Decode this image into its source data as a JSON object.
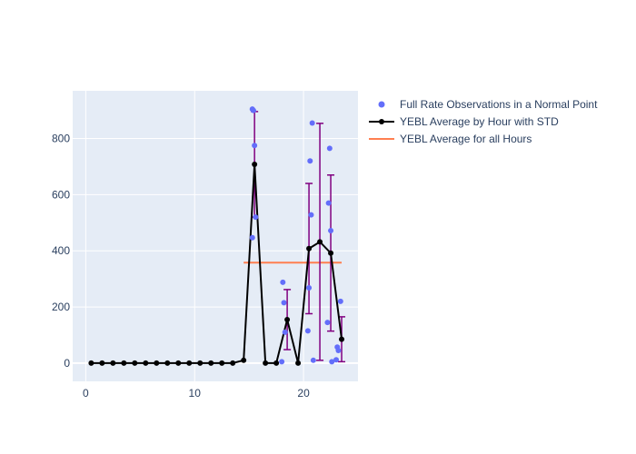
{
  "chart_data": {
    "type": "line",
    "x_ticks": [
      0,
      10,
      20
    ],
    "y_ticks": [
      0,
      200,
      400,
      600,
      800
    ],
    "xlim": [
      -1.2,
      25.0
    ],
    "ylim": [
      -65,
      970
    ],
    "grid": true,
    "legend_position": "top-right (outside plot)",
    "colors": {
      "plot_background": "#e5ecf6",
      "grid": "#ffffff",
      "observations": "#636efa",
      "average_line": "#000000",
      "error_bars": "#800080",
      "overall_average": "#ff7f50"
    },
    "series": [
      {
        "name": "Full Rate Observations in a Normal Point",
        "kind": "scatter",
        "points": [
          [
            15.3,
            905
          ],
          [
            15.4,
            900
          ],
          [
            15.5,
            775
          ],
          [
            15.3,
            447
          ],
          [
            15.6,
            520
          ],
          [
            18.1,
            288
          ],
          [
            18.2,
            215
          ],
          [
            18.3,
            110
          ],
          [
            18.0,
            5
          ],
          [
            20.8,
            855
          ],
          [
            20.6,
            720
          ],
          [
            20.7,
            528
          ],
          [
            20.5,
            268
          ],
          [
            20.4,
            115
          ],
          [
            20.9,
            10
          ],
          [
            22.4,
            765
          ],
          [
            22.3,
            570
          ],
          [
            22.5,
            472
          ],
          [
            22.2,
            145
          ],
          [
            22.6,
            5
          ],
          [
            23.4,
            220
          ],
          [
            23.1,
            57
          ],
          [
            23.2,
            45
          ],
          [
            23.0,
            12
          ]
        ]
      },
      {
        "name": "YEBL Average by Hour with STD",
        "kind": "line",
        "x": [
          0.5,
          1.5,
          2.5,
          3.5,
          4.5,
          5.5,
          6.5,
          7.5,
          8.5,
          9.5,
          10.5,
          11.5,
          12.5,
          13.5,
          14.5,
          15.5,
          16.5,
          17.5,
          18.5,
          19.5,
          20.5,
          21.5,
          22.5,
          23.5
        ],
        "y": [
          0,
          0,
          0,
          0,
          0,
          0,
          0,
          0,
          0,
          0,
          0,
          0,
          0,
          0,
          10,
          708,
          0,
          0,
          155,
          0,
          408,
          432,
          392,
          85
        ],
        "std": [
          0,
          0,
          0,
          0,
          0,
          0,
          0,
          0,
          0,
          0,
          0,
          0,
          0,
          0,
          0,
          188,
          0,
          0,
          107,
          0,
          232,
          422,
          278,
          80
        ]
      },
      {
        "name": "YEBL Average for all Hours",
        "kind": "hline",
        "x": [
          14.5,
          23.5
        ],
        "y": 358
      }
    ]
  }
}
